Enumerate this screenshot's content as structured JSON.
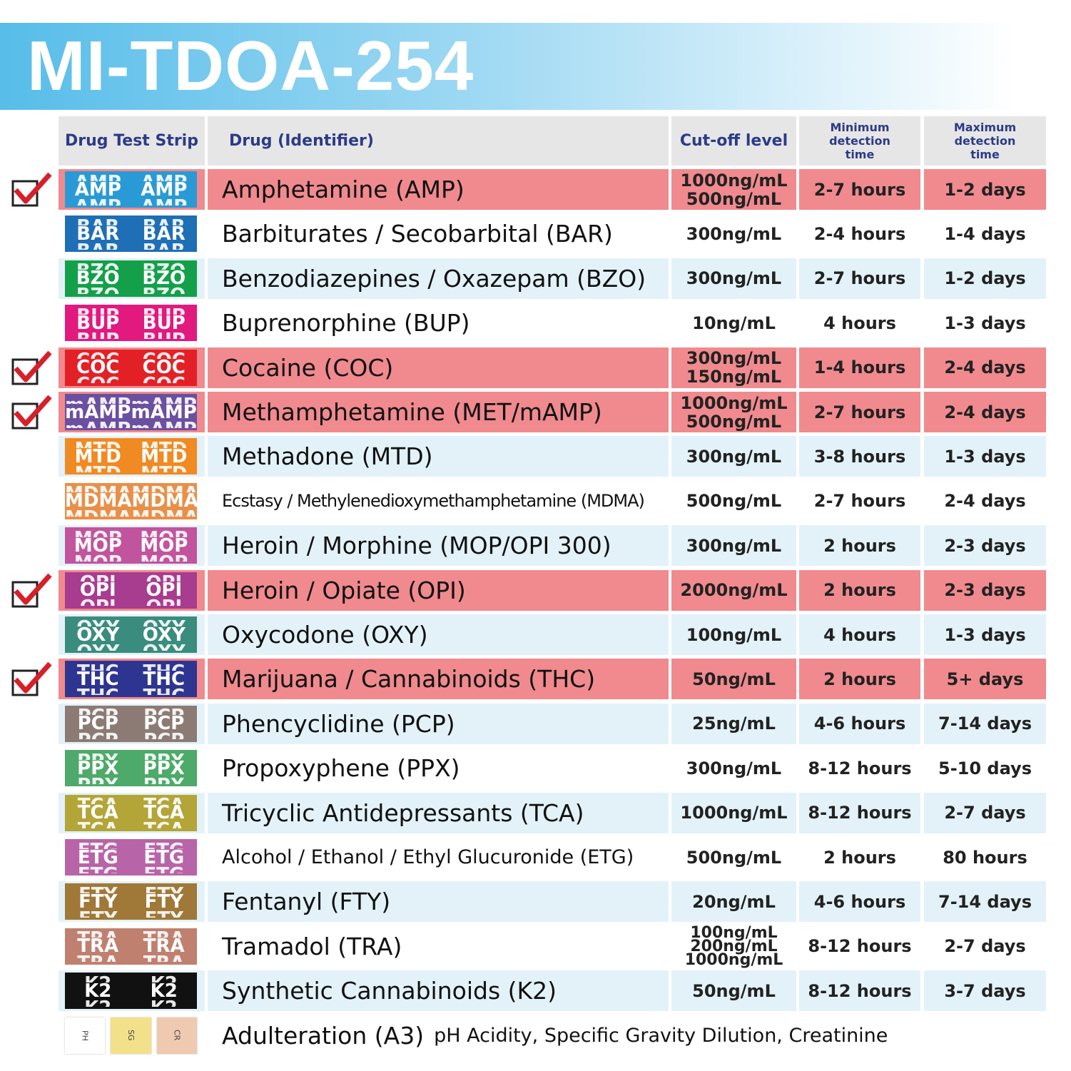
{
  "title": "MI-TDOA-254",
  "header": {
    "strip": "Drug Test Strip",
    "drug": "Drug (Identifier)",
    "cutoff": "Cut-off level",
    "min": "Minimum detection time",
    "max": "Maximum detection time"
  },
  "rows": [
    {
      "strip": "AMP",
      "strip_color": "#2a9ad6",
      "name": "Amphetamine (AMP)",
      "cutoff": [
        "1000ng/mL",
        "500ng/mL"
      ],
      "min": "2-7 hours",
      "max": "1-2 days",
      "checked": true
    },
    {
      "strip": "BAR",
      "strip_color": "#1f6fb6",
      "name": "Barbiturates / Secobarbital (BAR)",
      "cutoff": [
        "300ng/mL"
      ],
      "min": "2-4 hours",
      "max": "1-4 days",
      "checked": false
    },
    {
      "strip": "BZO",
      "strip_color": "#14a04a",
      "name": "Benzodiazepines / Oxazepam (BZO)",
      "cutoff": [
        "300ng/mL"
      ],
      "min": "2-7 hours",
      "max": "1-2 days",
      "checked": false
    },
    {
      "strip": "BUP",
      "strip_color": "#e2197f",
      "name": "Buprenorphine (BUP)",
      "cutoff": [
        "10ng/mL"
      ],
      "min": "4 hours",
      "max": "1-3 days",
      "checked": false
    },
    {
      "strip": "COC",
      "strip_color": "#e42027",
      "name": "Cocaine (COC)",
      "cutoff": [
        "300ng/mL",
        "150ng/mL"
      ],
      "min": "1-4 hours",
      "max": "2-4 days",
      "checked": true
    },
    {
      "strip": "mAMP",
      "strip_color": "#6b4fa0",
      "name": "Methamphetamine (MET/mAMP)",
      "cutoff": [
        "1000ng/mL",
        "500ng/mL"
      ],
      "min": "2-7 hours",
      "max": "2-4 days",
      "checked": true
    },
    {
      "strip": "MTD",
      "strip_color": "#f08a22",
      "name": "Methadone (MTD)",
      "cutoff": [
        "300ng/mL"
      ],
      "min": "3-8 hours",
      "max": "1-3 days",
      "checked": false
    },
    {
      "strip": "MDMA",
      "strip_color": "#e8904a",
      "name": "Ecstasy / Methylenedioxymethamphetamine (MDMA)",
      "cutoff": [
        "500ng/mL"
      ],
      "min": "2-7 hours",
      "max": "2-4 days",
      "checked": false
    },
    {
      "strip": "MOP",
      "strip_color": "#c2549d",
      "name": "Heroin / Morphine (MOP/OPI 300)",
      "cutoff": [
        "300ng/mL"
      ],
      "min": "2 hours",
      "max": "2-3 days",
      "checked": false
    },
    {
      "strip": "OPI",
      "strip_color": "#a83c8e",
      "name": "Heroin / Opiate (OPI)",
      "cutoff": [
        "2000ng/mL"
      ],
      "min": "2 hours",
      "max": "2-3 days",
      "checked": true
    },
    {
      "strip": "OXY",
      "strip_color": "#3a8c7e",
      "name": "Oxycodone (OXY)",
      "cutoff": [
        "100ng/mL"
      ],
      "min": "4 hours",
      "max": "1-3 days",
      "checked": false
    },
    {
      "strip": "THC",
      "strip_color": "#2e3590",
      "name": "Marijuana / Cannabinoids (THC)",
      "cutoff": [
        "50ng/mL"
      ],
      "min": "2 hours",
      "max": "5+ days",
      "checked": true
    },
    {
      "strip": "PCP",
      "strip_color": "#8c7b74",
      "name": "Phencyclidine (PCP)",
      "cutoff": [
        "25ng/mL"
      ],
      "min": "4-6 hours",
      "max": "7-14 days",
      "checked": false
    },
    {
      "strip": "PPX",
      "strip_color": "#4daa6a",
      "name": "Propoxyphene (PPX)",
      "cutoff": [
        "300ng/mL"
      ],
      "min": "8-12 hours",
      "max": "5-10 days",
      "checked": false
    },
    {
      "strip": "TCA",
      "strip_color": "#b3a537",
      "name": "Tricyclic Antidepressants (TCA)",
      "cutoff": [
        "1000ng/mL"
      ],
      "min": "8-12 hours",
      "max": "2-7 days",
      "checked": false
    },
    {
      "strip": "ETG",
      "strip_color": "#b864a8",
      "name": "Alcohol / Ethanol / Ethyl Glucuronide (ETG)",
      "cutoff": [
        "500ng/mL"
      ],
      "min": "2 hours",
      "max": "80 hours",
      "checked": false
    },
    {
      "strip": "FTY",
      "strip_color": "#a07838",
      "name": "Fentanyl (FTY)",
      "cutoff": [
        "20ng/mL"
      ],
      "min": "4-6 hours",
      "max": "7-14 days",
      "checked": false
    },
    {
      "strip": "TRA",
      "strip_color": "#c08070",
      "name": "Tramadol (TRA)",
      "cutoff": [
        "100ng/mL",
        "200ng/mL",
        "1000ng/mL"
      ],
      "min": "8-12 hours",
      "max": "2-7 days",
      "checked": false
    },
    {
      "strip": "K2",
      "strip_color": "#111111",
      "name": "Synthetic Cannabinoids (K2)",
      "cutoff": [
        "50ng/mL"
      ],
      "min": "8-12 hours",
      "max": "3-7 days",
      "checked": false
    }
  ],
  "adulteration": {
    "name": "Adulteration (A3)",
    "detail": "pH Acidity, Specific Gravity Dilution, Creatinine",
    "pads": [
      {
        "label": "PH",
        "color": "#ffffff"
      },
      {
        "label": "SG",
        "color": "#f3e08a"
      },
      {
        "label": "CR",
        "color": "#efc9b0"
      }
    ]
  }
}
